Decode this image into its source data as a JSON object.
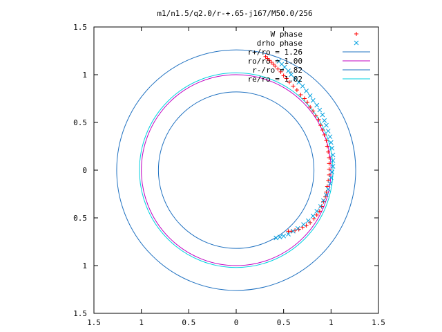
{
  "chart_data": {
    "type": "scatter",
    "title": "m1/n1.5/q2.0/r-+.65-j167/M50.0/256",
    "xlabel": "",
    "ylabel": "",
    "xlim": [
      -1.5,
      1.5
    ],
    "ylim": [
      -1.5,
      1.5
    ],
    "x_ticks": [
      -1.5,
      -1,
      -0.5,
      0,
      0.5,
      1,
      1.5
    ],
    "x_tick_labels": [
      "1.5",
      "1",
      "0.5",
      "0",
      "0.5",
      "1",
      "1.5"
    ],
    "y_ticks": [
      -1.5,
      -1,
      -0.5,
      0,
      0.5,
      1,
      1.5
    ],
    "y_tick_labels": [
      "1.5",
      "1",
      "0.5",
      "0",
      "0.5",
      "1",
      "1.5"
    ],
    "grid": false,
    "legend_position": "top-right",
    "series": [
      {
        "name": "W phase",
        "kind": "points",
        "marker": "+",
        "color": "#ff0000",
        "points": [
          [
            0.31,
            1.19
          ],
          [
            0.33,
            1.17
          ],
          [
            0.35,
            1.15
          ],
          [
            0.37,
            1.13
          ],
          [
            0.39,
            1.11
          ],
          [
            0.41,
            1.09
          ],
          [
            0.44,
            1.06
          ],
          [
            0.47,
            1.03
          ],
          [
            0.5,
            0.99
          ],
          [
            0.53,
            0.96
          ],
          [
            0.56,
            0.92
          ],
          [
            0.6,
            0.88
          ],
          [
            0.64,
            0.84
          ],
          [
            0.68,
            0.79
          ],
          [
            0.72,
            0.75
          ],
          [
            0.75,
            0.71
          ],
          [
            0.78,
            0.66
          ],
          [
            0.81,
            0.62
          ],
          [
            0.84,
            0.57
          ],
          [
            0.87,
            0.53
          ],
          [
            0.89,
            0.47
          ],
          [
            0.91,
            0.42
          ],
          [
            0.93,
            0.37
          ],
          [
            0.95,
            0.31
          ],
          [
            0.96,
            0.25
          ],
          [
            0.97,
            0.19
          ],
          [
            0.98,
            0.13
          ],
          [
            0.98,
            0.07
          ],
          [
            0.98,
            0.01
          ],
          [
            0.98,
            -0.05
          ],
          [
            0.97,
            -0.11
          ],
          [
            0.96,
            -0.17
          ],
          [
            0.95,
            -0.23
          ],
          [
            0.94,
            -0.28
          ],
          [
            0.92,
            -0.33
          ],
          [
            0.9,
            -0.38
          ],
          [
            0.88,
            -0.43
          ],
          [
            0.85,
            -0.47
          ],
          [
            0.82,
            -0.51
          ],
          [
            0.78,
            -0.55
          ],
          [
            0.74,
            -0.58
          ],
          [
            0.7,
            -0.6
          ],
          [
            0.66,
            -0.62
          ],
          [
            0.62,
            -0.63
          ],
          [
            0.58,
            -0.64
          ],
          [
            0.55,
            -0.64
          ]
        ]
      },
      {
        "name": "drho phase",
        "kind": "points",
        "marker": "x",
        "color": "#00a0e0",
        "points": [
          [
            0.45,
            1.14
          ],
          [
            0.48,
            1.11
          ],
          [
            0.51,
            1.08
          ],
          [
            0.55,
            1.04
          ],
          [
            0.58,
            1.0
          ],
          [
            0.62,
            0.96
          ],
          [
            0.66,
            0.92
          ],
          [
            0.7,
            0.88
          ],
          [
            0.74,
            0.83
          ],
          [
            0.78,
            0.78
          ],
          [
            0.81,
            0.73
          ],
          [
            0.85,
            0.68
          ],
          [
            0.88,
            0.63
          ],
          [
            0.91,
            0.58
          ],
          [
            0.93,
            0.52
          ],
          [
            0.95,
            0.47
          ],
          [
            0.97,
            0.41
          ],
          [
            0.99,
            0.35
          ],
          [
            1.0,
            0.29
          ],
          [
            1.01,
            0.23
          ],
          [
            1.02,
            0.16
          ],
          [
            1.02,
            0.1
          ],
          [
            1.02,
            0.04
          ],
          [
            1.01,
            -0.02
          ],
          [
            1.0,
            -0.08
          ],
          [
            0.99,
            -0.14
          ],
          [
            0.97,
            -0.2
          ],
          [
            0.95,
            -0.26
          ],
          [
            0.92,
            -0.32
          ],
          [
            0.89,
            -0.38
          ],
          [
            0.85,
            -0.43
          ],
          [
            0.81,
            -0.48
          ],
          [
            0.76,
            -0.53
          ],
          [
            0.71,
            -0.57
          ],
          [
            0.65,
            -0.61
          ],
          [
            0.6,
            -0.64
          ],
          [
            0.55,
            -0.67
          ],
          [
            0.5,
            -0.69
          ],
          [
            0.46,
            -0.7
          ],
          [
            0.42,
            -0.71
          ]
        ]
      },
      {
        "name": "r+/ro = 1.26",
        "kind": "circle",
        "radius": 1.26,
        "color": "#1e70c0"
      },
      {
        "name": "ro/ro = 1.00",
        "kind": "circle",
        "radius": 1.0,
        "color": "#c000c0"
      },
      {
        "name": "r-/ro = .82",
        "kind": "circle",
        "radius": 0.82,
        "color": "#1e70c0"
      },
      {
        "name": "re/ro = 1.02",
        "kind": "circle",
        "radius": 1.02,
        "color": "#00d0e0"
      }
    ]
  }
}
